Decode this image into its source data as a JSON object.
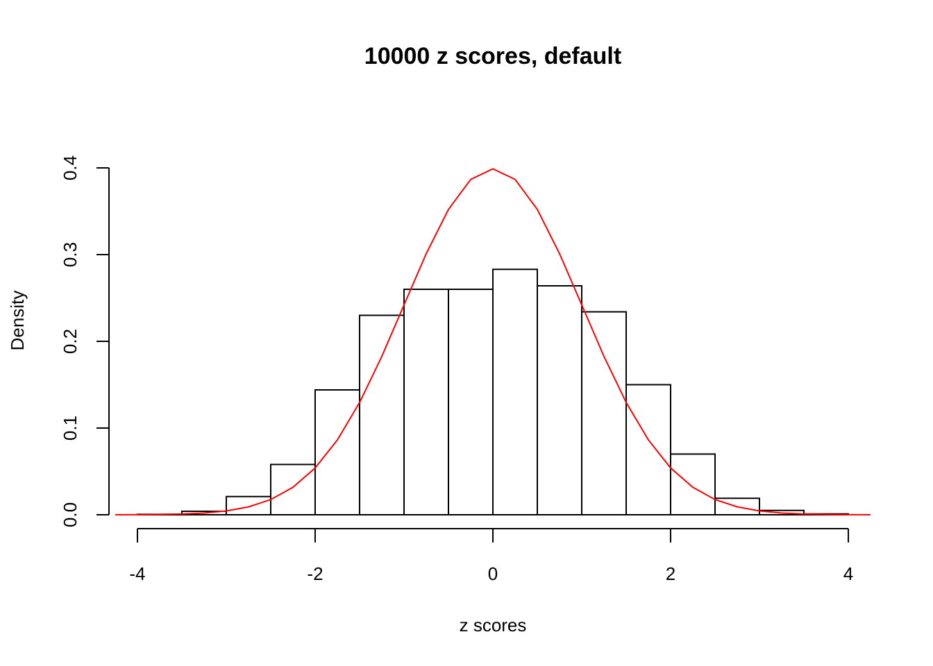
{
  "chart_data": {
    "type": "histogram",
    "title": "10000 z scores, default",
    "x_label": "z scores",
    "y_label": "Density",
    "bins": [
      -4,
      -3.5,
      -3,
      -2.5,
      -2,
      -1.5,
      -1,
      -0.5,
      0,
      0.5,
      1,
      1.5,
      2,
      2.5,
      3,
      3.5,
      4
    ],
    "values": [
      0.0005,
      0.004,
      0.021,
      0.058,
      0.144,
      0.23,
      0.26,
      0.26,
      0.283,
      0.264,
      0.234,
      0.15,
      0.07,
      0.019,
      0.005,
      0.001
    ],
    "color": "#ffffff",
    "curve": {
      "color": "#ff0000",
      "x": [
        -4.25,
        -4,
        -3.75,
        -3.5,
        -3.25,
        -3,
        -2.75,
        -2.5,
        -2.25,
        -2,
        -1.75,
        -1.5,
        -1.25,
        -1,
        -0.75,
        -0.5,
        -0.25,
        0,
        0.25,
        0.5,
        0.75,
        1,
        1.25,
        1.5,
        1.75,
        2,
        2.25,
        2.5,
        2.75,
        3,
        3.25,
        3.5,
        3.75,
        4,
        4.25
      ],
      "y": [
        5e-05,
        0.0001,
        0.0004,
        0.0009,
        0.002,
        0.0044,
        0.0091,
        0.0175,
        0.0317,
        0.054,
        0.0863,
        0.1295,
        0.1826,
        0.242,
        0.3011,
        0.3521,
        0.3867,
        0.3989,
        0.3867,
        0.3521,
        0.3011,
        0.242,
        0.1826,
        0.1295,
        0.0863,
        0.054,
        0.0317,
        0.0175,
        0.0091,
        0.0044,
        0.002,
        0.0009,
        0.0004,
        0.0001,
        5e-05
      ]
    },
    "xlim": [
      -4.32,
      4.32
    ],
    "ylim": [
      -0.016,
      0.416
    ],
    "xticks": [
      -4,
      -2,
      0,
      2,
      4
    ],
    "yticks": [
      {
        "value": 0,
        "label": "0.0"
      },
      0.1,
      0.2,
      0.3,
      0.4
    ]
  }
}
